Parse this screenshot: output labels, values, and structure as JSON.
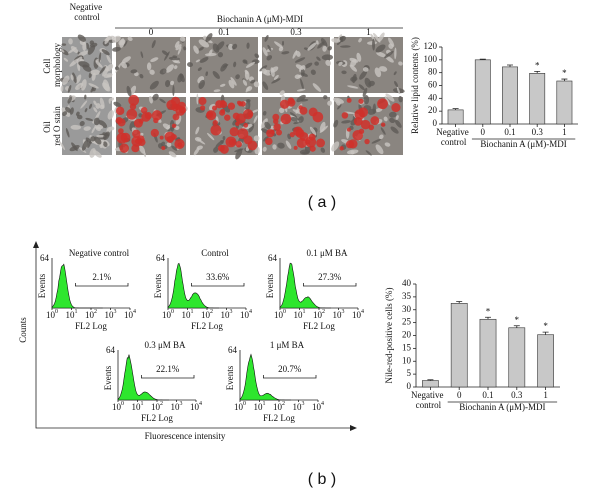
{
  "panel_a": {
    "label": "( a )",
    "negative_header": "Negative control",
    "group_header": "Biochanin A (μM)-MDI",
    "columns": [
      "0",
      "0.1",
      "0.3",
      "1"
    ],
    "rows": [
      "Cell morphology",
      "Oil red O stain"
    ]
  },
  "panel_b": {
    "label": "( b )",
    "y_label": "Counts",
    "x_label": "Fluorescence intensity",
    "histograms": [
      {
        "title": "Negative control",
        "gate": "2.1%"
      },
      {
        "title": "Control",
        "gate": "33.6%"
      },
      {
        "title": "0.1 μM BA",
        "gate": "27.3%"
      },
      {
        "title": "0.3 μM BA",
        "gate": "22.1%"
      },
      {
        "title": "1 μM BA",
        "gate": "20.7%"
      }
    ],
    "histogram_axes": {
      "y_label": "Events",
      "y_max": "64",
      "x_label": "FL2 Log",
      "xticks": [
        {
          "base": "10",
          "exp": "0"
        },
        {
          "base": "10",
          "exp": "1"
        },
        {
          "base": "10",
          "exp": "2"
        },
        {
          "base": "10",
          "exp": "3"
        },
        {
          "base": "10",
          "exp": "4"
        }
      ]
    }
  },
  "chart_data": [
    {
      "type": "bar",
      "ylabel": "Relative lipid contents (%)",
      "xlabel": "Biochanin A (μM)-MDI",
      "categories": [
        "Negative control",
        "0",
        "0.1",
        "0.3",
        "1"
      ],
      "values": [
        22,
        100,
        89,
        79,
        67
      ],
      "errors": [
        2,
        1,
        3,
        3,
        3
      ],
      "significance": [
        null,
        null,
        null,
        "*",
        "*"
      ],
      "color": "#c8c8c8",
      "ylim": [
        0,
        120
      ],
      "yticks": [
        0,
        20,
        40,
        60,
        80,
        100,
        120
      ]
    },
    {
      "type": "bar",
      "ylabel": "Nile-red-positive cells (%)",
      "xlabel": "Biochanin A (μM)-MDI",
      "categories": [
        "Negative control",
        "0",
        "0.1",
        "0.3",
        "1"
      ],
      "values": [
        2.5,
        32.5,
        26.3,
        23,
        20.3
      ],
      "errors": [
        0.3,
        0.7,
        0.8,
        0.8,
        1
      ],
      "significance": [
        null,
        null,
        "*",
        "*",
        "*"
      ],
      "color": "#c8c8c8",
      "ylim": [
        0,
        40
      ],
      "yticks": [
        0,
        5,
        10,
        15,
        20,
        25,
        30,
        35,
        40
      ]
    }
  ]
}
